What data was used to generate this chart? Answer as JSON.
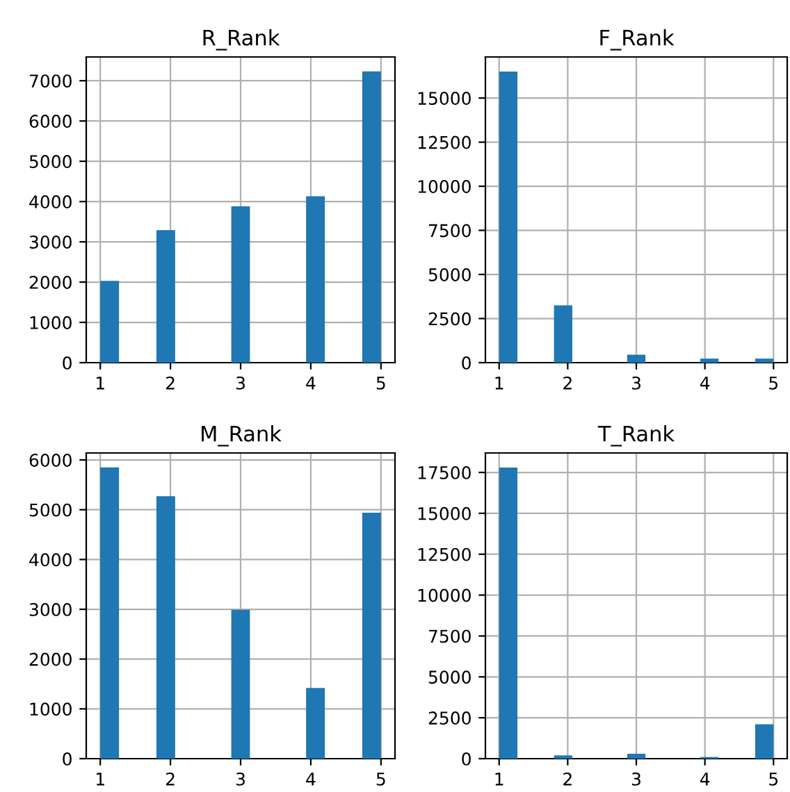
{
  "chart_data": [
    {
      "type": "histogram",
      "title": "R_Rank",
      "bins": [
        1,
        1.267,
        1.533,
        1.8,
        2.067,
        2.333,
        2.6,
        2.867,
        3.133,
        3.4,
        3.667,
        3.933,
        4.2,
        4.467,
        4.733,
        5
      ],
      "values": [
        2030,
        0,
        0,
        3290,
        0,
        0,
        0,
        3880,
        0,
        0,
        0,
        4130,
        0,
        0,
        7230
      ],
      "color": "#1f77b4",
      "xlim": [
        0.8,
        5.2
      ],
      "ylim": [
        0,
        7590
      ],
      "xticks": [
        1,
        2,
        3,
        4,
        5
      ],
      "yticks": [
        0,
        1000,
        2000,
        3000,
        4000,
        5000,
        6000,
        7000
      ],
      "grid": true
    },
    {
      "type": "histogram",
      "title": "F_Rank",
      "bins": [
        1,
        1.267,
        1.533,
        1.8,
        2.067,
        2.333,
        2.6,
        2.867,
        3.133,
        3.4,
        3.667,
        3.933,
        4.2,
        4.467,
        4.733,
        5
      ],
      "values": [
        16500,
        0,
        0,
        3250,
        0,
        0,
        0,
        450,
        0,
        0,
        0,
        230,
        0,
        0,
        230
      ],
      "color": "#1f77b4",
      "xlim": [
        0.8,
        5.2
      ],
      "ylim": [
        0,
        17330
      ],
      "xticks": [
        1,
        2,
        3,
        4,
        5
      ],
      "yticks": [
        0,
        2500,
        5000,
        7500,
        10000,
        12500,
        15000
      ],
      "grid": true
    },
    {
      "type": "histogram",
      "title": "M_Rank",
      "bins": [
        1,
        1.267,
        1.533,
        1.8,
        2.067,
        2.333,
        2.6,
        2.867,
        3.133,
        3.4,
        3.667,
        3.933,
        4.2,
        4.467,
        4.733,
        5
      ],
      "values": [
        5850,
        0,
        0,
        5270,
        0,
        0,
        0,
        2990,
        0,
        0,
        0,
        1420,
        0,
        0,
        4940
      ],
      "color": "#1f77b4",
      "xlim": [
        0.8,
        5.2
      ],
      "ylim": [
        0,
        6140
      ],
      "xticks": [
        1,
        2,
        3,
        4,
        5
      ],
      "yticks": [
        0,
        1000,
        2000,
        3000,
        4000,
        5000,
        6000
      ],
      "grid": true
    },
    {
      "type": "histogram",
      "title": "T_Rank",
      "bins": [
        1,
        1.267,
        1.533,
        1.8,
        2.067,
        2.333,
        2.6,
        2.867,
        3.133,
        3.4,
        3.667,
        3.933,
        4.2,
        4.467,
        4.733,
        5
      ],
      "values": [
        17800,
        0,
        0,
        200,
        0,
        0,
        0,
        300,
        0,
        0,
        0,
        100,
        0,
        0,
        2100
      ],
      "color": "#1f77b4",
      "xlim": [
        0.8,
        5.2
      ],
      "ylim": [
        0,
        18690
      ],
      "xticks": [
        1,
        2,
        3,
        4,
        5
      ],
      "yticks": [
        0,
        2500,
        5000,
        7500,
        10000,
        12500,
        15000,
        17500
      ],
      "grid": true
    }
  ]
}
